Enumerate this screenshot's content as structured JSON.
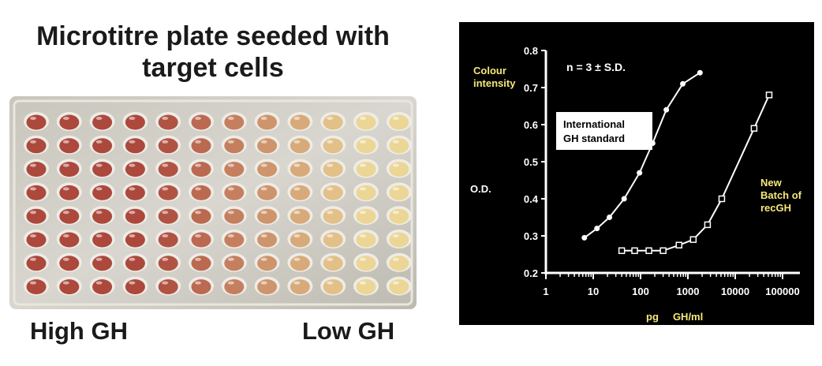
{
  "left_panel": {
    "title_line1": "Microtitre plate seeded with",
    "title_line2": "target cells",
    "caption_high": "High GH",
    "caption_low": "Low GH",
    "plate": {
      "rows": 8,
      "columns": 12
    }
  },
  "chart_data": {
    "type": "line",
    "ylabel": "O.D.",
    "ylabel_note": "Colour\nintensity",
    "xlabel": "pg     GH/ml",
    "annotation": "n = 3 ± S.D.",
    "xscale": "log",
    "xlim": [
      1,
      100000
    ],
    "ylim": [
      0.2,
      0.8
    ],
    "xticks": [
      "1",
      "10",
      "100",
      "1000",
      "10000",
      "100000"
    ],
    "yticks": [
      "0.2",
      "0.3",
      "0.4",
      "0.5",
      "0.6",
      "0.7",
      "0.8"
    ],
    "grid": false,
    "background": "#000000",
    "series": [
      {
        "name": "International\nGH standard",
        "marker": "filled-circle",
        "x": [
          6.5,
          12,
          22,
          45,
          95,
          180,
          350,
          780,
          1800
        ],
        "y": [
          0.295,
          0.32,
          0.35,
          0.4,
          0.47,
          0.55,
          0.64,
          0.71,
          0.74
        ]
      },
      {
        "name": "New\nBatch of\nrecGH",
        "marker": "open-square",
        "x": [
          40,
          75,
          150,
          300,
          650,
          1300,
          2600,
          5200,
          25000,
          52000
        ],
        "y": [
          0.26,
          0.26,
          0.26,
          0.26,
          0.275,
          0.29,
          0.33,
          0.4,
          0.59,
          0.68
        ]
      }
    ]
  }
}
